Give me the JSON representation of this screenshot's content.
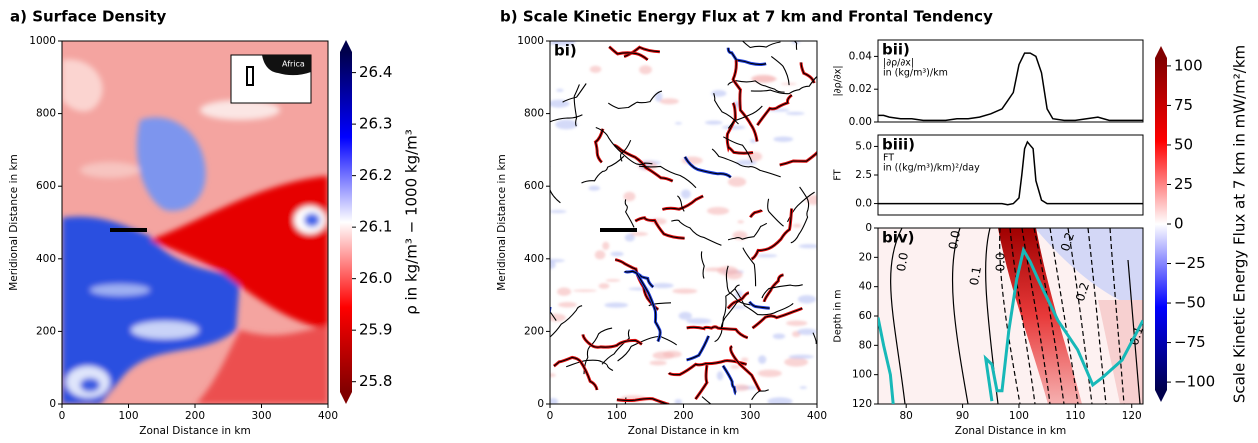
{
  "chart_data": [
    {
      "type": "heatmap",
      "title": "a) Surface Density",
      "xlabel": "Zonal Distance in km",
      "ylabel": "Meridional Distance in km",
      "xlim": [
        0,
        400
      ],
      "xticks": [
        0,
        100,
        200,
        300,
        400
      ],
      "ylim": [
        0,
        1000
      ],
      "yticks": [
        0,
        200,
        400,
        600,
        800,
        1000
      ],
      "inset_label": "Africa",
      "colorbar": {
        "label": "ρ in kg/m³ − 1000 kg/m³",
        "lim": [
          25.78,
          26.44
        ],
        "ticks": [
          25.8,
          25.9,
          {
            "value": 26.0,
            "label": "26.0"
          },
          26.1,
          26.2,
          26.3,
          26.4
        ],
        "colors": [
          "#800000",
          "#ff0000",
          "#ffffff",
          "#0000ff",
          "#00004c"
        ]
      }
    },
    {
      "type": "heatmap",
      "title": "b) Scale Kinetic Energy Flux at 7 km and Frontal Tendency",
      "panel_label": "bi)",
      "xlabel": "Zonal Distance in km",
      "ylabel": "Meridional Distance in km",
      "xlim": [
        0,
        400
      ],
      "xticks": [
        0,
        100,
        200,
        300,
        400
      ],
      "ylim": [
        0,
        1000
      ],
      "yticks": [
        0,
        200,
        400,
        600,
        800,
        1000
      ]
    },
    {
      "type": "line",
      "panel_label": "bii)",
      "ylabel": "|∂ρ/∂x|",
      "annotation": [
        "|∂ρ/∂x|",
        "in (kg/m³)/km"
      ],
      "x": [
        75,
        76,
        77,
        79,
        81,
        83,
        85,
        87,
        89,
        91,
        93,
        95,
        97,
        98,
        99,
        100,
        101,
        102,
        103,
        104,
        105,
        106,
        108,
        110,
        112,
        114,
        116,
        118,
        120,
        122
      ],
      "series": [
        {
          "color": "#000000",
          "values": [
            0.004,
            0.004,
            0.003,
            0.002,
            0.002,
            0.001,
            0.001,
            0.001,
            0.002,
            0.002,
            0.003,
            0.005,
            0.008,
            0.013,
            0.018,
            0.035,
            0.042,
            0.042,
            0.04,
            0.03,
            0.008,
            0.002,
            0.001,
            0.001,
            0.002,
            0.003,
            0.001,
            0.001,
            0.001,
            0.001
          ]
        }
      ],
      "xlim": [
        75,
        122
      ],
      "ylim": [
        0,
        0.05
      ],
      "yticks": [
        {
          "value": 0,
          "label": "0.00"
        },
        {
          "value": 0.02,
          "label": "0.02"
        },
        {
          "value": 0.04,
          "label": "0.04"
        }
      ]
    },
    {
      "type": "line",
      "panel_label": "biii)",
      "ylabel": "FT",
      "annotation": [
        "FT",
        "in ((kg/m³)/km)²/day"
      ],
      "x": [
        75,
        80,
        85,
        90,
        95,
        97,
        98,
        99,
        100,
        100.5,
        101,
        101.5,
        102,
        102.5,
        103,
        104,
        105,
        110,
        115,
        122
      ],
      "series": [
        {
          "color": "#000000",
          "values": [
            0,
            0,
            0,
            0,
            0,
            0,
            -0.1,
            0,
            0.5,
            2.5,
            4.8,
            5.4,
            5.1,
            4.8,
            2.0,
            0.3,
            0,
            0,
            0,
            0
          ]
        }
      ],
      "xlim": [
        75,
        122
      ],
      "ylim": [
        -1,
        6
      ],
      "yticks": [
        {
          "value": 0,
          "label": "0.0"
        },
        2.5,
        {
          "value": 5,
          "label": "5.0"
        }
      ]
    },
    {
      "type": "contour",
      "panel_label": "biv)",
      "xlabel": "Zonal Distance in km",
      "ylabel": "Depth in m",
      "xlim": [
        75,
        122
      ],
      "xticks": [
        80,
        90,
        100,
        110,
        120
      ],
      "ylim": [
        120,
        0
      ],
      "yticks": [
        0,
        20,
        40,
        60,
        80,
        100,
        120
      ],
      "contour_labels": [
        "0.0",
        "0.0",
        "0.1",
        "0.0",
        "0.2",
        "0.2",
        "0.1"
      ],
      "series": [
        {
          "color": "#17b8b8",
          "x": [
            75,
            76,
            77.2,
            77.7,
            null,
            95.2,
            94.1,
            95.2,
            96.1,
            97,
            98.2,
            99.6,
            100.8,
            102,
            103.4,
            106.9,
            110.4,
            113.1,
            114.8,
            118.3,
            122
          ],
          "values": [
            61,
            80,
            100,
            120,
            null,
            118,
            89,
            93,
            111,
            111,
            70,
            35,
            15,
            23,
            35,
            63,
            83,
            107,
            102,
            90,
            63
          ]
        }
      ],
      "colorbar": {
        "label": "Scale Kinetic Energy Flux at 7 km in mW/m²/km",
        "lim": [
          -105,
          105
        ],
        "ticks": [
          {
            "value": -100,
            "label": "−100"
          },
          {
            "value": -75,
            "label": "−75"
          },
          {
            "value": -50,
            "label": "−50"
          },
          {
            "value": -25,
            "label": "−25"
          },
          0,
          25,
          50,
          75,
          100
        ],
        "colors": [
          "#00004c",
          "#0000ff",
          "#ffffff",
          "#ff0000",
          "#800000"
        ]
      }
    }
  ]
}
